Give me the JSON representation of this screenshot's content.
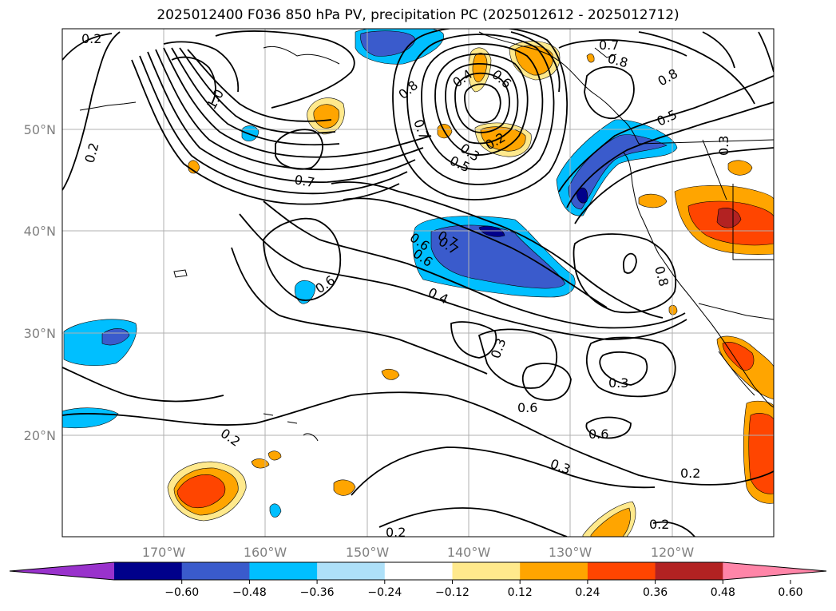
{
  "title": "2025012400 F036 850 hPa PV, precipitation PC (2025012612 - 2025012712)",
  "map": {
    "lon_ticks": [
      "170°W",
      "160°W",
      "150°W",
      "140°W",
      "130°W",
      "120°W"
    ],
    "lat_ticks": [
      "50°N",
      "40°N",
      "30°N",
      "20°N"
    ],
    "contour_labels": [
      "0.2",
      "1.0",
      "0.2",
      "0.7",
      "0.6",
      "0.8",
      "0.7",
      "0.5",
      "0.3",
      "0.2",
      "0.4",
      "0.6",
      "0.7",
      "0.8",
      "0.5",
      "0.3",
      "0.6",
      "0.7",
      "0.6",
      "0.4",
      "0.3",
      "0.3",
      "0.6",
      "0.6",
      "0.2",
      "0.3",
      "0.8",
      "0.2",
      "0.2",
      "0.2",
      "0.7",
      "0.8"
    ]
  },
  "colorbar": {
    "ticks": [
      "−0.60",
      "−0.48",
      "−0.36",
      "−0.24",
      "−0.12",
      "0.12",
      "0.24",
      "0.36",
      "0.48",
      "0.60"
    ],
    "colors": [
      "#9932cc",
      "#00008b",
      "#3a5bcc",
      "#00bfff",
      "#aee0f8",
      "#ffffff",
      "#ffe98c",
      "#ffa500",
      "#ff4500",
      "#b22222",
      "#ff85a8"
    ]
  }
}
